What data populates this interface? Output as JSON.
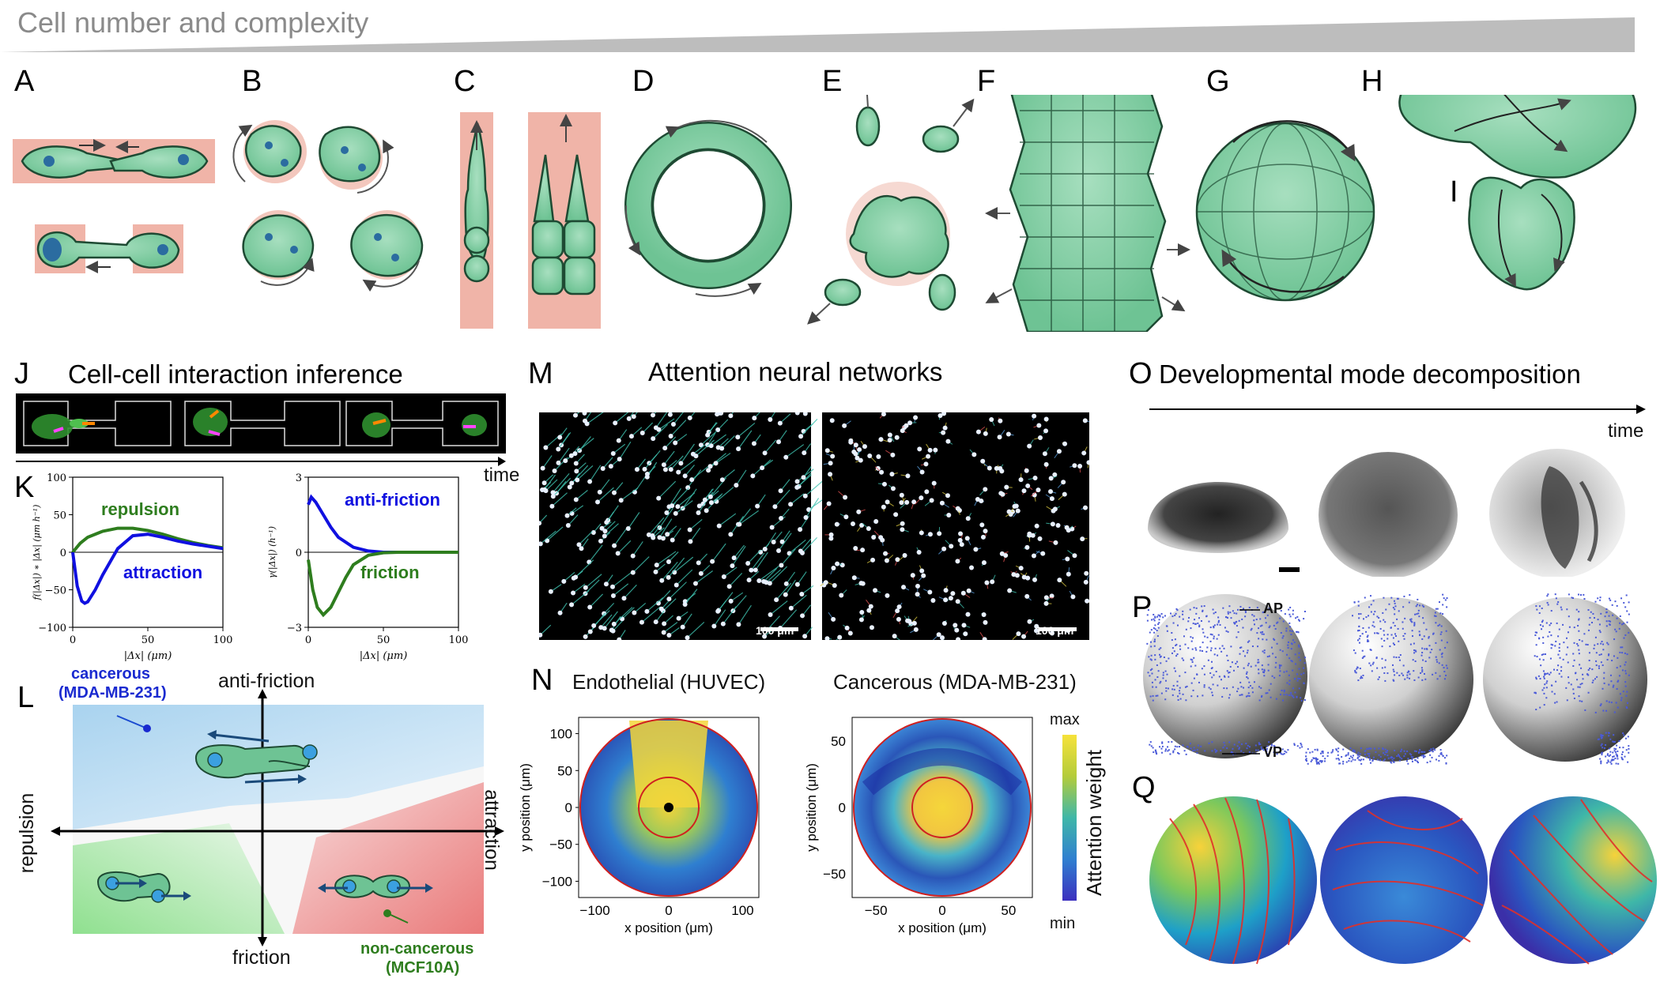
{
  "header": {
    "title": "Cell number and complexity"
  },
  "panels": {
    "A": "A",
    "B": "B",
    "C": "C",
    "D": "D",
    "E": "E",
    "F": "F",
    "G": "G",
    "H": "H",
    "I": "I",
    "J": "J",
    "K": "K",
    "L": "L",
    "M": "M",
    "N": "N",
    "O": "O",
    "P": "P",
    "Q": "Q"
  },
  "panel_j": {
    "title": "Cell-cell interaction inference",
    "time_label": "time"
  },
  "panel_k": {
    "left": {
      "ylabel": "f(|Δx|) ∗ |Δx| (μm h⁻¹)",
      "xlabel": "|Δx| (μm)",
      "label_pos": "repulsion",
      "label_neg": "attraction",
      "yticks": [
        "100",
        "50",
        "0",
        "−50",
        "−100"
      ],
      "xticks": [
        "0",
        "50",
        "100"
      ]
    },
    "right": {
      "ylabel": "γ(|Δx|) (h⁻¹)",
      "xlabel": "|Δx| (μm)",
      "label_pos": "anti-friction",
      "label_neg": "friction",
      "yticks": [
        "3",
        "0",
        "−3"
      ],
      "xticks": [
        "0",
        "50",
        "100"
      ]
    }
  },
  "panel_l": {
    "top": "anti-friction",
    "bottom": "friction",
    "left": "repulsion",
    "right": "attraction",
    "cancerous": "cancerous",
    "cancerous_line": "(MDA-MB-231)",
    "noncancerous": "non-cancerous",
    "noncancerous_line": "(MCF10A)"
  },
  "panel_m": {
    "title": "Attention neural networks",
    "scale_left": "100 μm",
    "scale_right": "100 μm"
  },
  "panel_n": {
    "left_title": "Endothelial (HUVEC)",
    "right_title": "Cancerous (MDA-MB-231)",
    "left": {
      "xlabel": "x position (μm)",
      "ylabel": "y position (μm)",
      "xticks": [
        "−100",
        "0",
        "100"
      ],
      "yticks": [
        "100",
        "50",
        "0",
        "−50",
        "−100"
      ]
    },
    "right": {
      "xlabel": "x position (μm)",
      "ylabel": "y position (μm)",
      "xticks": [
        "−50",
        "0",
        "50"
      ],
      "yticks": [
        "50",
        "0",
        "−50"
      ]
    },
    "colorbar": {
      "label": "Attention weight",
      "max": "max",
      "min": "min"
    }
  },
  "panel_o": {
    "title": "Developmental mode decomposition",
    "time_label": "time"
  },
  "panel_p": {
    "ap": "AP",
    "vp": "VP"
  },
  "chart_data": [
    {
      "type": "line",
      "xlabel": "|Δx| (μm)",
      "ylabel": "f(|Δx|) ∗ |Δx| (μm h⁻¹)",
      "xlim": [
        0,
        100
      ],
      "ylim": [
        -100,
        100
      ],
      "series": [
        {
          "name": "repulsion",
          "color": "#2e7d1e",
          "x": [
            0,
            5,
            10,
            20,
            30,
            40,
            50,
            60,
            70,
            80,
            90,
            100
          ],
          "y": [
            0,
            12,
            20,
            28,
            32,
            32,
            29,
            24,
            18,
            13,
            9,
            6
          ]
        },
        {
          "name": "attraction",
          "color": "#1010e0",
          "x": [
            0,
            3,
            6,
            8,
            10,
            15,
            20,
            30,
            40,
            50,
            60,
            70,
            80,
            90,
            100
          ],
          "y": [
            0,
            -45,
            -65,
            -68,
            -66,
            -50,
            -30,
            5,
            22,
            24,
            20,
            15,
            11,
            8,
            5
          ]
        }
      ]
    },
    {
      "type": "line",
      "xlabel": "|Δx| (μm)",
      "ylabel": "γ(|Δx|) (h⁻¹)",
      "xlim": [
        0,
        100
      ],
      "ylim": [
        -3,
        3
      ],
      "series": [
        {
          "name": "anti-friction",
          "color": "#1010e0",
          "x": [
            0,
            2,
            5,
            10,
            15,
            20,
            30,
            40,
            50,
            60,
            100
          ],
          "y": [
            1.9,
            2.2,
            2.0,
            1.5,
            1.0,
            0.6,
            0.2,
            0.05,
            0,
            0,
            0
          ]
        },
        {
          "name": "friction",
          "color": "#2e7d1e",
          "x": [
            0,
            3,
            6,
            10,
            15,
            20,
            25,
            30,
            40,
            50,
            60,
            100
          ],
          "y": [
            -0.3,
            -1.5,
            -2.2,
            -2.5,
            -2.2,
            -1.6,
            -1.0,
            -0.5,
            -0.12,
            -0.02,
            0,
            0
          ]
        }
      ]
    }
  ]
}
